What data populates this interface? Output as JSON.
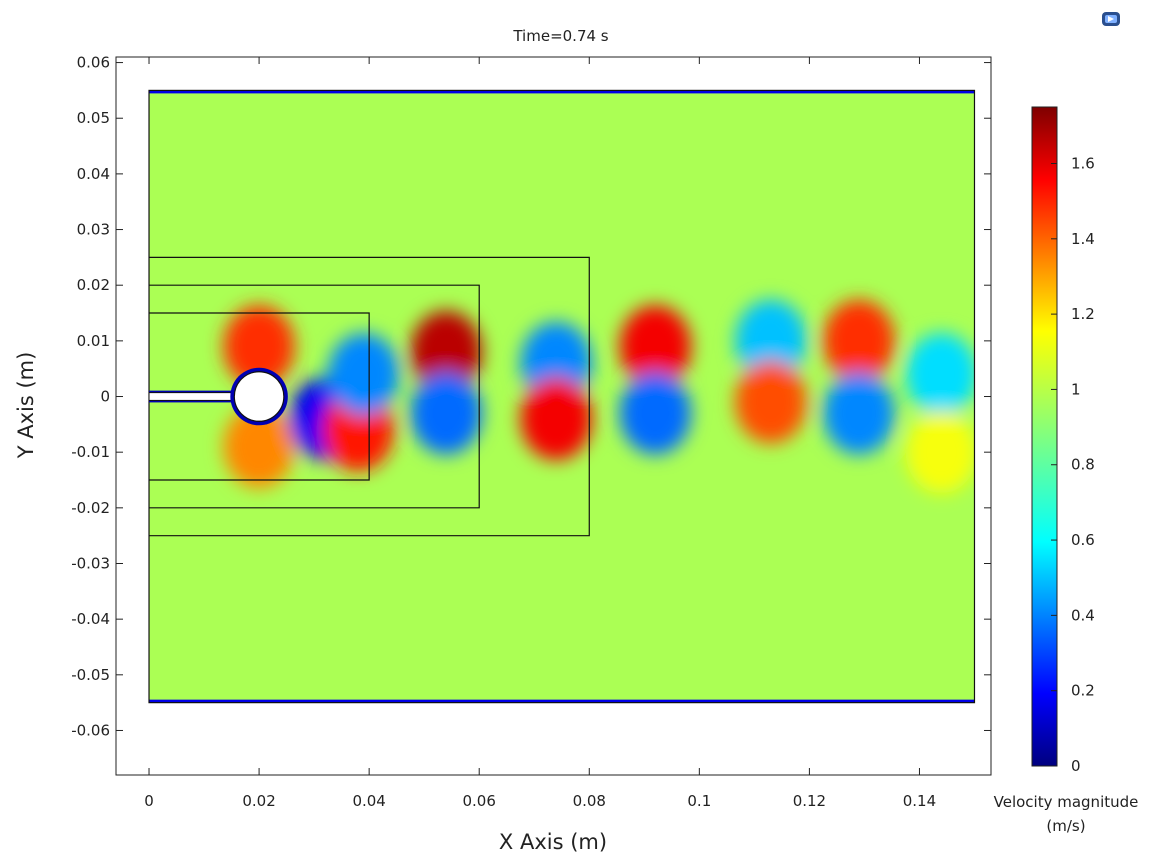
{
  "chart_data": {
    "type": "heatmap",
    "title": "Time=0.74 s",
    "xlabel": "X Axis (m)",
    "ylabel": "Y Axis (m)",
    "xlim": [
      -0.006,
      0.153
    ],
    "ylim": [
      -0.068,
      0.061
    ],
    "x_ticks": [
      0,
      0.02,
      0.04,
      0.06,
      0.08,
      0.1,
      0.12,
      0.14
    ],
    "x_tick_labels": [
      "0",
      "0.02",
      "0.04",
      "0.06",
      "0.08",
      "0.1",
      "0.12",
      "0.14"
    ],
    "y_ticks": [
      0.06,
      0.05,
      0.04,
      0.03,
      0.02,
      0.01,
      0,
      -0.01,
      -0.02,
      -0.03,
      -0.04,
      -0.05,
      -0.06
    ],
    "y_tick_labels": [
      "0.06",
      "0.05",
      "0.04",
      "0.03",
      "0.02",
      "0.01",
      "0",
      "-0.01",
      "-0.02",
      "-0.03",
      "-0.04",
      "-0.05",
      "-0.06"
    ],
    "domain": {
      "x": [
        0,
        0.15
      ],
      "y": [
        -0.055,
        0.055
      ]
    },
    "cylinder": {
      "center": [
        0.02,
        0
      ],
      "radius": 0.0045
    },
    "plate": {
      "x": [
        0,
        0.02
      ],
      "y": [
        -0.0007,
        0.0007
      ]
    },
    "refinement_boxes": [
      {
        "x": [
          0,
          0.04
        ],
        "y": [
          -0.015,
          0.015
        ]
      },
      {
        "x": [
          0,
          0.06
        ],
        "y": [
          -0.02,
          0.02
        ]
      },
      {
        "x": [
          0,
          0.08
        ],
        "y": [
          -0.025,
          0.025
        ]
      }
    ],
    "colorbar": {
      "title_line1": "Velocity magnitude",
      "title_line2": "(m/s)",
      "range": [
        0,
        1.75
      ],
      "ticks": [
        1.6,
        1.4,
        1.2,
        1,
        0.8,
        0.6,
        0.4,
        0.2,
        0
      ],
      "tick_labels": [
        "1.6",
        "1.4",
        "1.2",
        "1",
        "0.8",
        "0.6",
        "0.4",
        "0.2",
        "0"
      ],
      "colormap": "rainbow (dark blue to dark red)"
    },
    "field": {
      "background_value": 0.95,
      "features": [
        {
          "x": 0.02,
          "y": 0.009,
          "value": 1.45
        },
        {
          "x": 0.02,
          "y": -0.009,
          "value": 1.3
        },
        {
          "x": 0.032,
          "y": -0.004,
          "value": 0.2
        },
        {
          "x": 0.038,
          "y": -0.006,
          "value": 1.5
        },
        {
          "x": 0.039,
          "y": 0.004,
          "value": 0.45
        },
        {
          "x": 0.054,
          "y": 0.008,
          "value": 1.65
        },
        {
          "x": 0.054,
          "y": -0.003,
          "value": 0.4
        },
        {
          "x": 0.074,
          "y": 0.006,
          "value": 0.45
        },
        {
          "x": 0.074,
          "y": -0.004,
          "value": 1.55
        },
        {
          "x": 0.092,
          "y": 0.009,
          "value": 1.55
        },
        {
          "x": 0.092,
          "y": -0.003,
          "value": 0.4
        },
        {
          "x": 0.113,
          "y": 0.01,
          "value": 0.55
        },
        {
          "x": 0.113,
          "y": -0.001,
          "value": 1.4
        },
        {
          "x": 0.129,
          "y": 0.01,
          "value": 1.45
        },
        {
          "x": 0.129,
          "y": -0.003,
          "value": 0.45
        },
        {
          "x": 0.144,
          "y": 0.004,
          "value": 0.6
        },
        {
          "x": 0.144,
          "y": -0.01,
          "value": 1.08
        }
      ]
    },
    "grid": false,
    "legend": "colorbar right"
  },
  "icons": {
    "logo": "comsol-logo-icon"
  },
  "colors": {
    "frame": "#222222",
    "boundary_line": "#111111",
    "cylinder_fill": "#ffffff"
  }
}
